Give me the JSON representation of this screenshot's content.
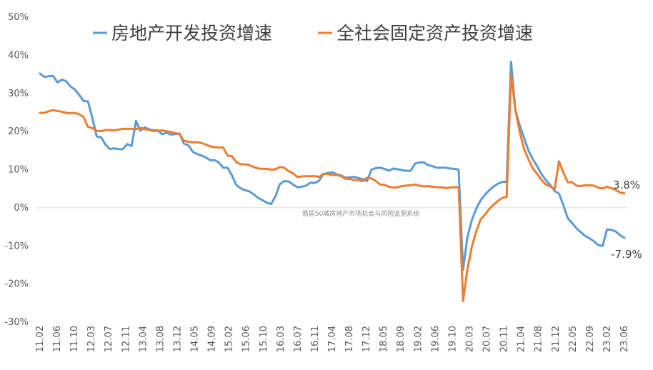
{
  "chart_data": {
    "type": "line",
    "title": "",
    "xlabel": "",
    "ylabel": "",
    "ylim": [
      -30,
      50
    ],
    "yticks": [
      50,
      40,
      30,
      20,
      10,
      0,
      -10,
      -20,
      -30
    ],
    "ytick_labels": [
      "50%",
      "40%",
      "30%",
      "20%",
      "10%",
      "0%",
      "-10%",
      "-20%",
      "-30%"
    ],
    "grid": false,
    "legend": "top",
    "x_tick_labels": [
      "11.02",
      "11.06",
      "11.10",
      "12.03",
      "12.07",
      "12.11",
      "13.04",
      "13.08",
      "13.12",
      "14.05",
      "14.09",
      "15.02",
      "15.06",
      "15.10",
      "16.03",
      "16.07",
      "16.11",
      "17.04",
      "17.08",
      "17.12",
      "18.05",
      "18.09",
      "19.02",
      "19.06",
      "19.10",
      "20.03",
      "20.07",
      "20.11",
      "21.04",
      "21.08",
      "21.12",
      "22.05",
      "22.09",
      "23.02",
      "23.06"
    ],
    "series": [
      {
        "name": "房地产开发投资增速",
        "color": "#5b9bd5",
        "values": [
          35.2,
          34.3,
          34.5,
          34.6,
          32.9,
          33.6,
          33.2,
          31.8,
          31.0,
          29.6,
          28.0,
          27.9,
          23.5,
          18.7,
          18.5,
          16.6,
          15.4,
          15.6,
          15.4,
          15.4,
          16.7,
          16.2,
          22.8,
          20.2,
          21.1,
          20.6,
          20.3,
          20.3,
          19.3,
          19.7,
          19.2,
          19.3,
          19.5,
          16.8,
          16.4,
          14.7,
          14.1,
          13.7,
          13.2,
          12.5,
          12.5,
          11.9,
          10.5,
          10.5,
          8.5,
          6.0,
          5.1,
          4.6,
          4.3,
          3.5,
          2.6,
          2.0,
          1.3,
          1.0,
          3.0,
          6.2,
          7.0,
          6.9,
          6.1,
          5.4,
          5.5,
          5.8,
          6.6,
          6.5,
          7.1,
          8.9,
          9.1,
          9.3,
          8.8,
          8.5,
          7.9,
          8.0,
          8.1,
          7.8,
          7.5,
          7.0,
          10.0,
          10.4,
          10.5,
          10.2,
          9.7,
          10.3,
          10.1,
          9.9,
          9.7,
          9.7,
          11.6,
          11.9,
          11.9,
          11.2,
          10.9,
          10.5,
          10.5,
          10.5,
          10.3,
          10.2,
          10.0,
          -16.3,
          -7.7,
          -3.3,
          -0.3,
          1.9,
          3.4,
          4.6,
          5.6,
          6.3,
          6.8,
          6.8,
          38.3,
          25.6,
          21.6,
          18.3,
          15.0,
          12.7,
          10.9,
          8.8,
          7.2,
          6.0,
          4.4,
          3.7,
          0.7,
          -2.7,
          -4.0,
          -5.4,
          -6.4,
          -7.4,
          -8.0,
          -8.8,
          -9.8,
          -10.0,
          -5.7,
          -5.8,
          -6.2,
          -7.2,
          -7.9
        ]
      },
      {
        "name": "全社会固定资产投资增速",
        "color": "#ed7d31",
        "values": [
          24.9,
          24.9,
          25.3,
          25.6,
          25.4,
          25.2,
          24.9,
          24.8,
          24.9,
          24.5,
          23.8,
          21.2,
          20.9,
          20.2,
          20.1,
          20.4,
          20.4,
          20.3,
          20.5,
          20.7,
          20.7,
          20.7,
          20.6,
          21.0,
          20.6,
          20.4,
          20.1,
          20.2,
          20.3,
          20.1,
          19.9,
          19.6,
          19.3,
          17.6,
          17.3,
          17.2,
          17.2,
          17.0,
          16.6,
          16.1,
          15.9,
          15.8,
          15.8,
          13.7,
          13.5,
          12.0,
          11.4,
          11.4,
          11.2,
          10.7,
          10.3,
          10.2,
          10.2,
          10.0,
          10.1,
          10.7,
          10.5,
          9.6,
          9.0,
          8.1,
          8.2,
          8.3,
          8.3,
          8.3,
          8.1,
          8.9,
          8.9,
          8.6,
          8.6,
          8.3,
          7.6,
          7.5,
          7.3,
          7.2,
          7.0,
          7.9,
          7.7,
          7.0,
          6.1,
          6.0,
          5.5,
          5.3,
          5.4,
          5.7,
          5.8,
          5.9,
          6.1,
          5.8,
          5.6,
          5.7,
          5.5,
          5.4,
          5.4,
          5.2,
          5.3,
          5.4,
          5.4,
          -24.5,
          -16.1,
          -10.3,
          -6.3,
          -3.1,
          -1.8,
          -0.3,
          0.8,
          1.8,
          2.6,
          2.9,
          35.0,
          25.6,
          19.9,
          15.4,
          12.7,
          10.3,
          8.9,
          7.3,
          6.1,
          5.6,
          4.9,
          12.2,
          9.3,
          6.7,
          6.7,
          5.8,
          5.7,
          5.9,
          5.9,
          5.8,
          5.3,
          5.1,
          5.5,
          5.1,
          4.7,
          4.0,
          3.8
        ]
      }
    ],
    "annotations": [
      {
        "text": "3.8%",
        "series": 1
      },
      {
        "text": "-7.9%",
        "series": 0
      }
    ],
    "watermark": "易居50城房地产市场机会与风险监测系统"
  }
}
